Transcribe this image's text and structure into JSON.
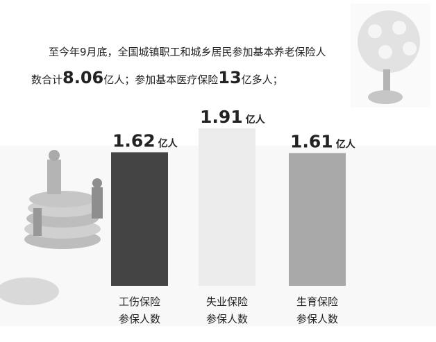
{
  "chart_data": {
    "type": "bar",
    "title_line1": "至今年9月底，全国城镇职工和城乡居民参加基本养老保险人",
    "title_line2": [
      {
        "text": "数合计",
        "big": false
      },
      {
        "text": "8.06",
        "big": true
      },
      {
        "text": "亿人；参加基本医疗保险",
        "big": false
      },
      {
        "text": "13",
        "big": true
      },
      {
        "text": "亿多人；",
        "big": false
      }
    ],
    "categories": [
      [
        "工伤保险",
        "参保人数"
      ],
      [
        "失业保险",
        "参保人数"
      ],
      [
        "生育保险",
        "参保人数"
      ]
    ],
    "values": [
      1.62,
      1.91,
      1.61
    ],
    "unit": "亿人",
    "colors": [
      "#444444",
      "#ececec",
      "#a9a9a9"
    ]
  }
}
